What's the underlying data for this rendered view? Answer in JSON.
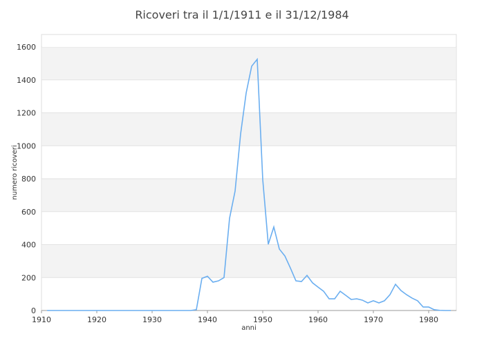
{
  "chart_data": {
    "type": "line",
    "title": "Ricoveri tra il 1/1/1911 e il 31/12/1984",
    "xlabel": "anni",
    "ylabel": "numero ricoveri",
    "xlim": [
      1910,
      1985
    ],
    "ylim": [
      0,
      1680
    ],
    "xticks": [
      1910,
      1920,
      1930,
      1940,
      1950,
      1960,
      1970,
      1980
    ],
    "yticks": [
      0,
      200,
      400,
      600,
      800,
      1000,
      1200,
      1400,
      1600
    ],
    "grid": true,
    "line_color": "#6aaef0",
    "x": [
      1911,
      1912,
      1913,
      1914,
      1915,
      1916,
      1917,
      1918,
      1919,
      1920,
      1921,
      1922,
      1923,
      1924,
      1925,
      1926,
      1927,
      1928,
      1929,
      1930,
      1931,
      1932,
      1933,
      1934,
      1935,
      1936,
      1937,
      1938,
      1939,
      1940,
      1941,
      1942,
      1943,
      1944,
      1945,
      1946,
      1947,
      1948,
      1949,
      1950,
      1951,
      1952,
      1953,
      1954,
      1955,
      1956,
      1957,
      1958,
      1959,
      1960,
      1961,
      1962,
      1963,
      1964,
      1965,
      1966,
      1967,
      1968,
      1969,
      1970,
      1971,
      1972,
      1973,
      1974,
      1975,
      1976,
      1977,
      1978,
      1979,
      1980,
      1981,
      1982,
      1983,
      1984
    ],
    "y": [
      0,
      0,
      0,
      0,
      0,
      0,
      0,
      0,
      0,
      0,
      0,
      0,
      0,
      0,
      0,
      0,
      0,
      0,
      0,
      0,
      0,
      0,
      0,
      0,
      0,
      0,
      0,
      5,
      195,
      208,
      172,
      180,
      200,
      560,
      725,
      1072,
      1320,
      1483,
      1525,
      795,
      402,
      507,
      373,
      331,
      258,
      180,
      176,
      213,
      168,
      142,
      117,
      71,
      71,
      117,
      92,
      67,
      71,
      63,
      46,
      59,
      46,
      59,
      96,
      159,
      121,
      96,
      75,
      59,
      21,
      21,
      5,
      1,
      0,
      0
    ]
  }
}
